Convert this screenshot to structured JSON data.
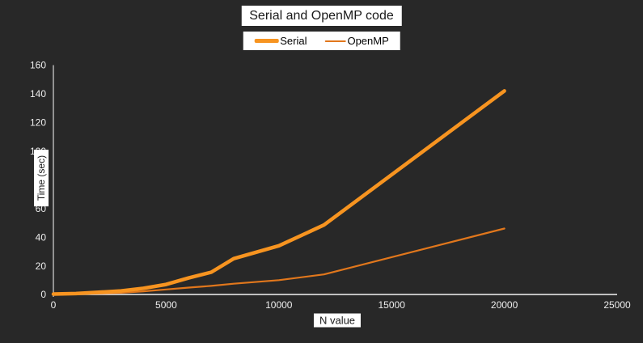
{
  "title": "Serial and OpenMP code",
  "colors": {
    "background": "#282828",
    "axis_x": "#f2f2f2",
    "axis_y": "#d9d9d9",
    "tick_text": "#ededed",
    "label_box_bg": "#ffffff",
    "label_text": "#1a1a1a",
    "serial": "#f79420",
    "openmp": "#e1771c"
  },
  "chart_data": {
    "type": "line",
    "title": "Serial and OpenMP code",
    "xlabel": "N value",
    "ylabel": "Time (sec)",
    "xlim": [
      0,
      25000
    ],
    "ylim": [
      0,
      160
    ],
    "xticks": [
      0,
      5000,
      10000,
      15000,
      20000,
      25000
    ],
    "yticks": [
      0,
      20,
      40,
      60,
      80,
      100,
      120,
      140,
      160
    ],
    "grid": false,
    "legend_position": "top-center",
    "x": [
      0,
      1000,
      2000,
      3000,
      4000,
      5000,
      6000,
      7000,
      8000,
      10000,
      12000,
      20000
    ],
    "series": [
      {
        "name": "Serial",
        "color": "#f79420",
        "width": 4.5,
        "values": [
          0.3,
          0.6,
          1.5,
          2.5,
          4.3,
          7,
          11.5,
          15.5,
          25,
          34,
          48.5,
          142
        ]
      },
      {
        "name": "OpenMP",
        "color": "#e1771c",
        "width": 2.2,
        "values": [
          0.1,
          0.3,
          0.7,
          1.2,
          2.2,
          3.5,
          4.8,
          6,
          7.5,
          10,
          14,
          46
        ]
      }
    ]
  }
}
